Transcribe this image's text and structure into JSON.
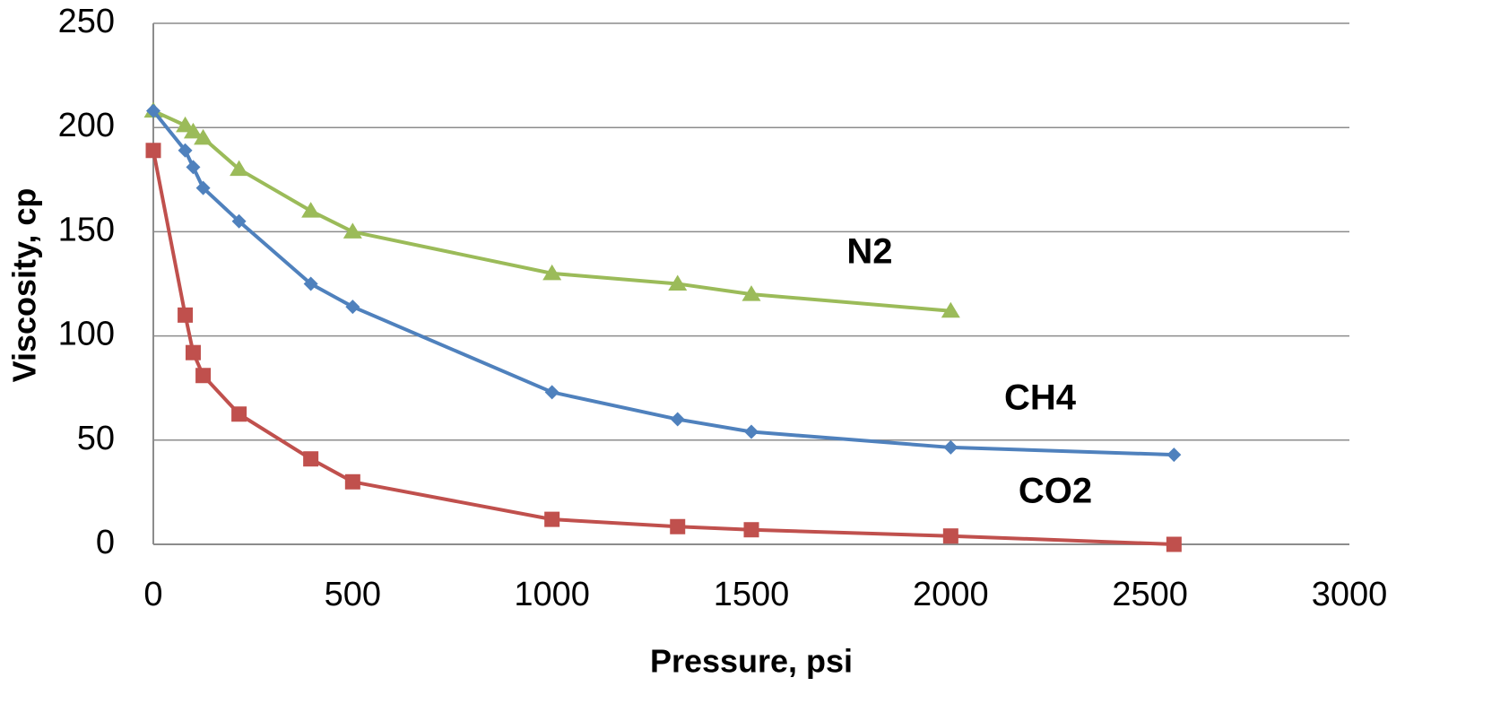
{
  "chart_data": {
    "type": "line",
    "title": "",
    "xlabel": "Pressure, psi",
    "ylabel": "Viscosity, cp",
    "xlim": [
      0,
      3000
    ],
    "ylim": [
      0,
      250
    ],
    "xticks": [
      0,
      500,
      1000,
      1500,
      2000,
      2500,
      3000
    ],
    "yticks": [
      0,
      50,
      100,
      150,
      200,
      250
    ],
    "grid": "horizontal",
    "legend": "none",
    "series": [
      {
        "name": "N2",
        "color": "#9bbb59",
        "marker": "triangle",
        "x": [
          0,
          80,
          100,
          125,
          215,
          395,
          500,
          1000,
          1315,
          1500,
          2000
        ],
        "y": [
          208,
          201,
          198,
          195,
          180,
          160,
          150,
          130,
          125,
          120,
          112
        ]
      },
      {
        "name": "CH4",
        "color": "#4f81bd",
        "marker": "diamond",
        "x": [
          0,
          80,
          100,
          125,
          215,
          395,
          500,
          1000,
          1315,
          1500,
          2000,
          2560
        ],
        "y": [
          208,
          189,
          181,
          171,
          155,
          125,
          114,
          73,
          60,
          54,
          46.5,
          43
        ]
      },
      {
        "name": "CO2",
        "color": "#c0504d",
        "marker": "square",
        "x": [
          0,
          80,
          100,
          125,
          215,
          395,
          500,
          1000,
          1315,
          1500,
          2000,
          2560
        ],
        "y": [
          189,
          110,
          92,
          81,
          62.5,
          41,
          30,
          12,
          8.5,
          7,
          4,
          0
        ]
      }
    ]
  }
}
